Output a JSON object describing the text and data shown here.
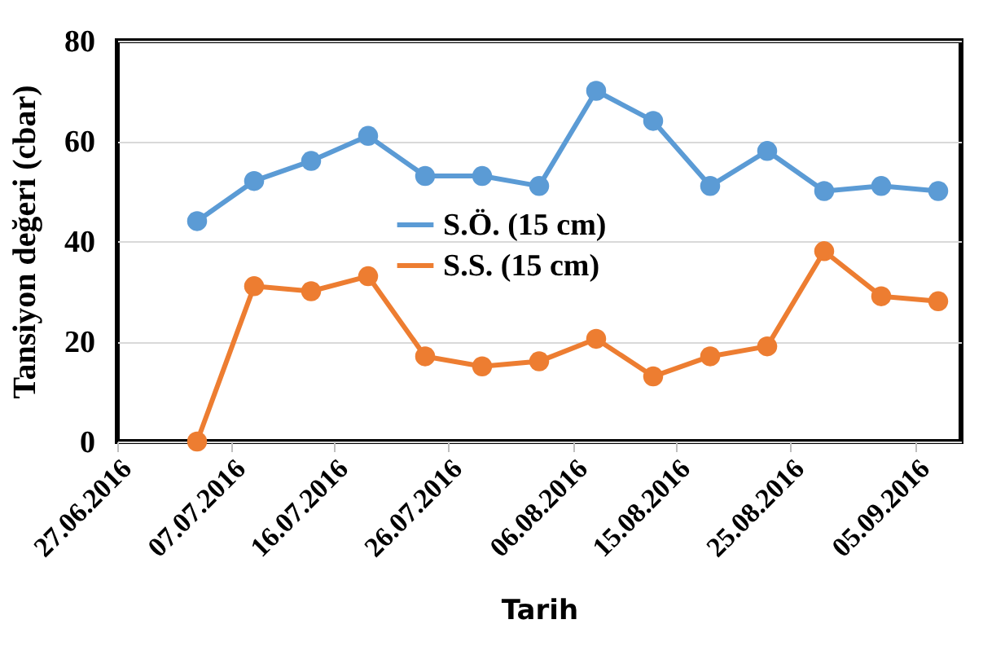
{
  "chart_data": {
    "type": "line",
    "xlabel": "Tarih",
    "ylabel": "Tansiyon değeri (cbar)",
    "x": [
      "2016-07-04",
      "2016-07-09",
      "2016-07-14",
      "2016-07-19",
      "2016-07-24",
      "2016-07-29",
      "2016-08-03",
      "2016-08-08",
      "2016-08-13",
      "2016-08-18",
      "2016-08-23",
      "2016-08-28",
      "2016-09-02",
      "2016-09-07"
    ],
    "series": [
      {
        "name": "S.Ö. (15 cm)",
        "color": "#5b9bd5",
        "values": [
          44,
          52,
          56,
          61,
          53,
          53,
          51,
          70,
          64,
          51,
          58,
          50,
          51,
          50
        ]
      },
      {
        "name": "S.S. (15 cm)",
        "color": "#ed7d31",
        "values": [
          0,
          31,
          30,
          33,
          17,
          15,
          16,
          20.5,
          13,
          17,
          19,
          38,
          29,
          28
        ]
      }
    ],
    "xlim": [
      "2016-06-27",
      "2016-09-09"
    ],
    "xticks": [
      {
        "value": "2016-06-27",
        "label": "27.06.2016"
      },
      {
        "value": "2016-07-07",
        "label": "07.07.2016"
      },
      {
        "value": "2016-07-16",
        "label": "16.07.2016"
      },
      {
        "value": "2016-07-26",
        "label": "26.07.2016"
      },
      {
        "value": "2016-08-06",
        "label": "06.08.2016"
      },
      {
        "value": "2016-08-15",
        "label": "15.08.2016"
      },
      {
        "value": "2016-08-25",
        "label": "25.08.2016"
      },
      {
        "value": "2016-09-05",
        "label": "05.09.2016"
      }
    ],
    "ylim": [
      0,
      80
    ],
    "yticks": [
      0,
      20,
      40,
      60,
      80
    ],
    "grid": "y",
    "legend": "center",
    "marker": "circle",
    "line_style": "solid"
  }
}
